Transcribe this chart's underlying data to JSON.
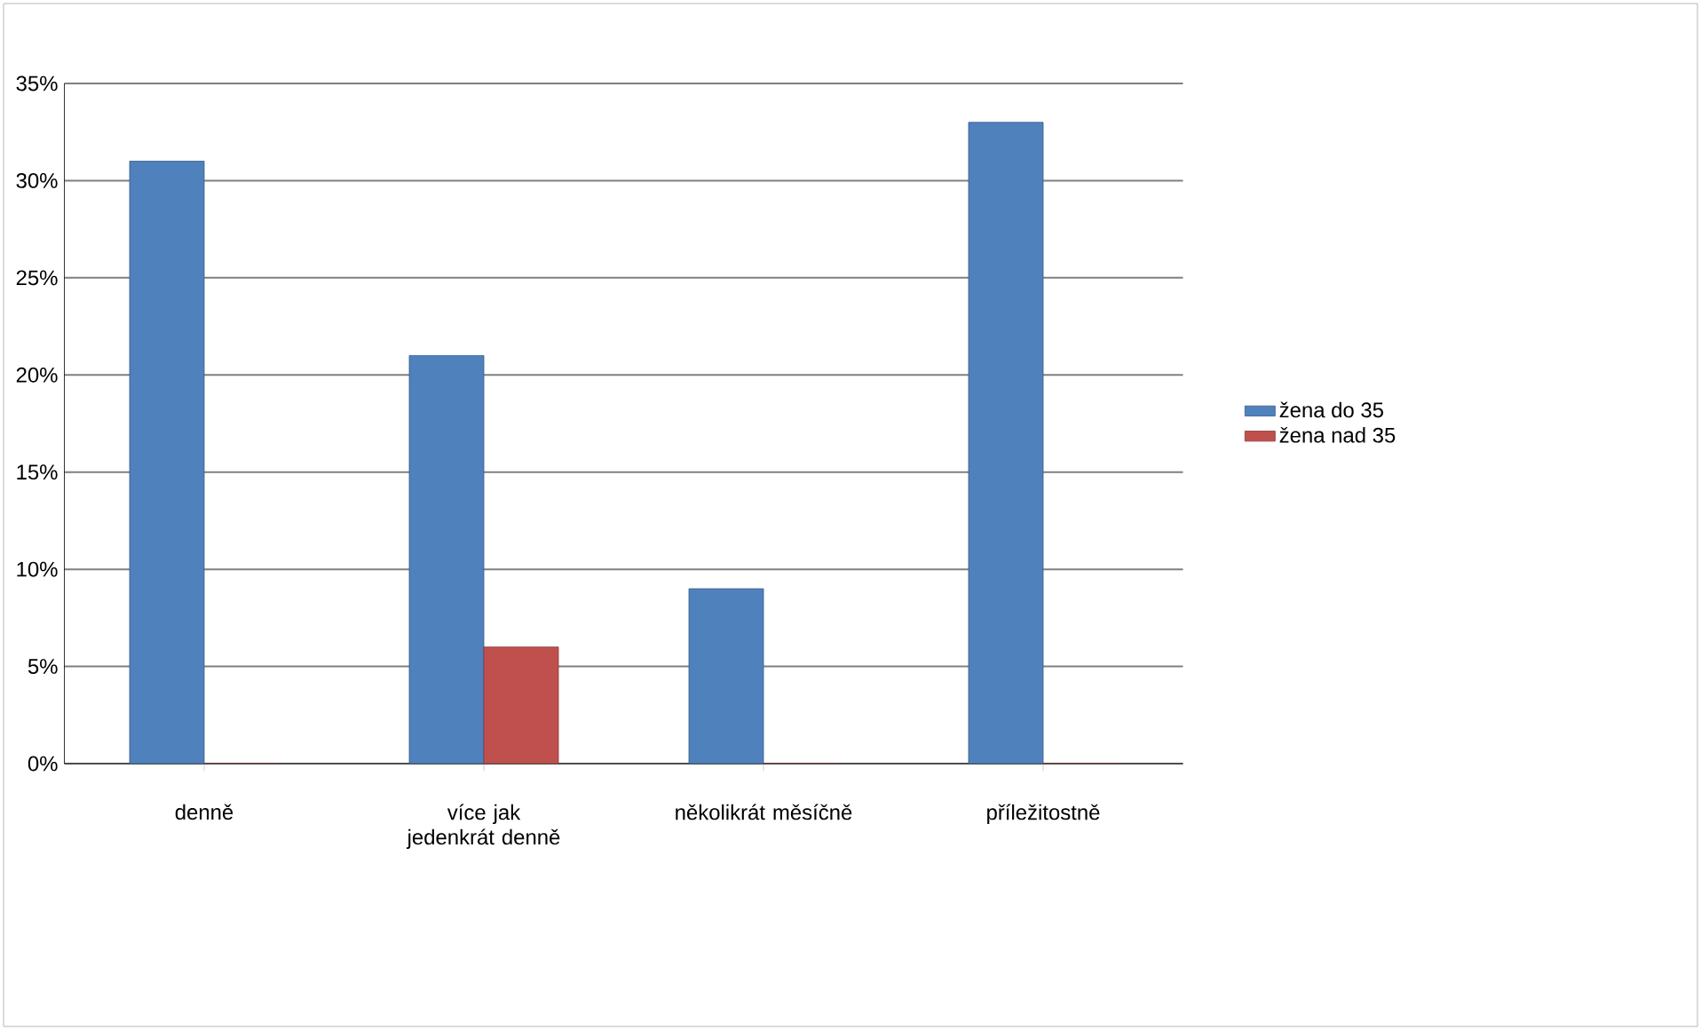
{
  "chart_data": {
    "type": "bar",
    "categories": [
      "denně",
      "více jak jedenkrát denně",
      "několikrát měsíčně",
      "příležitostně"
    ],
    "series": [
      {
        "name": "žena do 35",
        "color": "#4f81bd",
        "values": [
          31,
          21,
          9,
          33
        ]
      },
      {
        "name": "žena nad 35",
        "color": "#c0504d",
        "values": [
          0,
          6,
          0,
          0
        ]
      }
    ],
    "ylim": [
      0,
      35
    ],
    "yticks": [
      {
        "value": 0,
        "label": "0%"
      },
      {
        "value": 5,
        "label": "5%"
      },
      {
        "value": 10,
        "label": "10%"
      },
      {
        "value": 15,
        "label": "15%"
      },
      {
        "value": 20,
        "label": "20%"
      },
      {
        "value": 25,
        "label": "25%"
      },
      {
        "value": 30,
        "label": "30%"
      },
      {
        "value": 35,
        "label": "35%"
      }
    ],
    "grid": "y",
    "legend": "right"
  }
}
